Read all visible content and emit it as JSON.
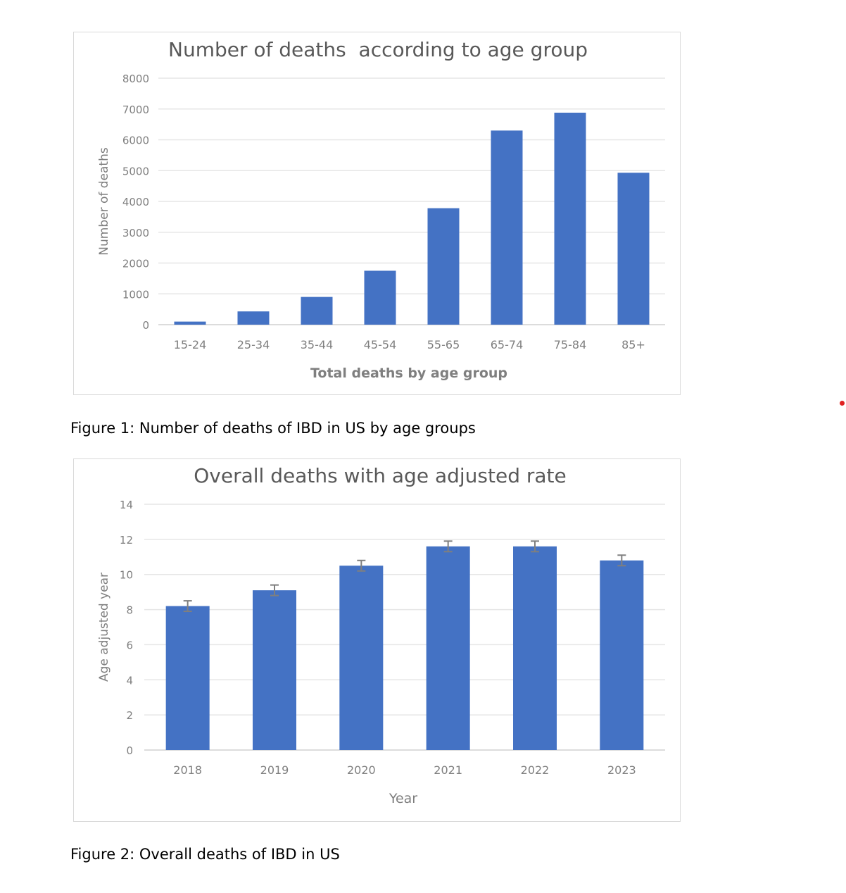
{
  "figures": [
    {
      "caption": "Figure 1: Number of deaths of IBD in US by age groups"
    },
    {
      "caption": "Figure 2: Overall deaths of IBD in US"
    }
  ],
  "colors": {
    "bar": "#4472c4",
    "grid": "#e6e6e6",
    "axis_text": "#7f7f7f",
    "title_text": "#595959",
    "error_bar": "#7f7f7f"
  },
  "chart_data": [
    {
      "type": "bar",
      "title": "Number of deaths  according to age group",
      "xlabel": "Total deaths by age group",
      "ylabel": "Number of deaths",
      "categories": [
        "15-24",
        "25-34",
        "35-44",
        "45-54",
        "55-65",
        "65-74",
        "75-84",
        "85+"
      ],
      "values": [
        100,
        430,
        900,
        1750,
        3780,
        6300,
        6880,
        4930
      ],
      "ylim": [
        0,
        8000
      ],
      "yticks": [
        0,
        1000,
        2000,
        3000,
        4000,
        5000,
        6000,
        7000,
        8000
      ],
      "grid": true,
      "legend": "none"
    },
    {
      "type": "bar",
      "title": "Overall deaths with age adjusted rate",
      "xlabel": "Year",
      "ylabel": "Age adjusted year",
      "categories": [
        "2018",
        "2019",
        "2020",
        "2021",
        "2022",
        "2023"
      ],
      "values": [
        8.2,
        9.1,
        10.5,
        11.6,
        11.6,
        10.8
      ],
      "error": [
        0.3,
        0.3,
        0.3,
        0.3,
        0.3,
        0.3
      ],
      "ylim": [
        0,
        14
      ],
      "yticks": [
        0,
        2,
        4,
        6,
        8,
        10,
        12,
        14
      ],
      "grid": true,
      "legend": "none"
    }
  ]
}
